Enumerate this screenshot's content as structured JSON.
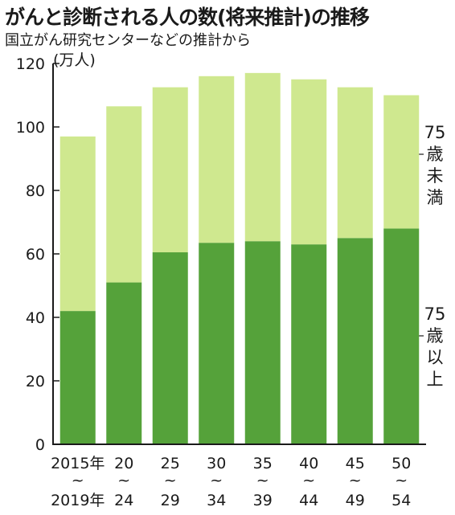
{
  "chart_data": {
    "type": "bar",
    "stacked": true,
    "title": "がんと診断される人の数(将来推計)の推移",
    "subtitle": "国立がん研究センターなどの推計から",
    "unit": "(万人)",
    "ylim": [
      0,
      120
    ],
    "yticks": [
      "0",
      "20",
      "40",
      "60",
      "80",
      "100",
      "120"
    ],
    "grid": false,
    "categories": [
      {
        "top": "2015年",
        "tilde": "~",
        "bottom": "2019年"
      },
      {
        "top": "20",
        "tilde": "~",
        "bottom": "24"
      },
      {
        "top": "25",
        "tilde": "~",
        "bottom": "29"
      },
      {
        "top": "30",
        "tilde": "~",
        "bottom": "34"
      },
      {
        "top": "35",
        "tilde": "~",
        "bottom": "39"
      },
      {
        "top": "40",
        "tilde": "~",
        "bottom": "44"
      },
      {
        "top": "45",
        "tilde": "~",
        "bottom": "49"
      },
      {
        "top": "50",
        "tilde": "~",
        "bottom": "54"
      }
    ],
    "series": [
      {
        "name_lines": [
          "75",
          "歳",
          "以",
          "上"
        ],
        "color": "#55a23a",
        "values": [
          42,
          51,
          60.5,
          63.5,
          64,
          63,
          65,
          68
        ]
      },
      {
        "name_lines": [
          "75",
          "歳",
          "未",
          "満"
        ],
        "color": "#cfe88f",
        "values": [
          55,
          55.5,
          52,
          52.5,
          53,
          52,
          47.5,
          42
        ]
      }
    ]
  }
}
